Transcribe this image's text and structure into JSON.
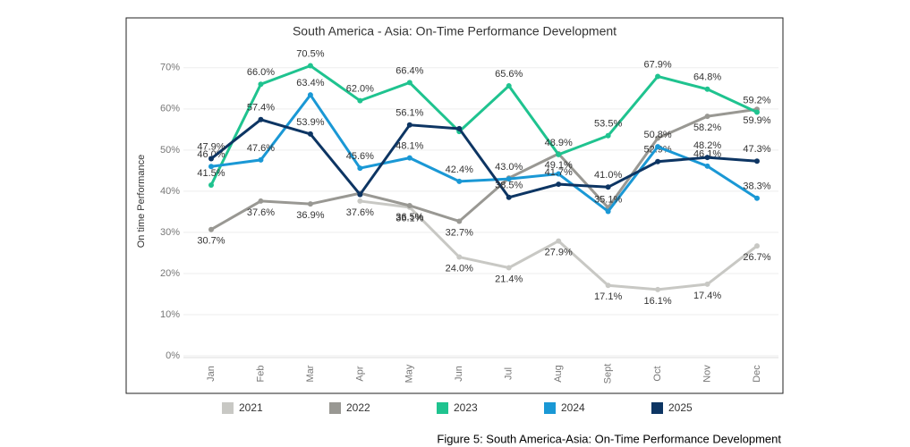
{
  "chart_data": {
    "type": "line",
    "title": "South America - Asia: On-Time Performance Development",
    "y_label": "On time Performance",
    "caption": "Figure 5: South America-Asia: On-Time Performance Development",
    "categories": [
      "Jan",
      "Feb",
      "Mar",
      "Apr",
      "May",
      "Jun",
      "Jul",
      "Aug",
      "Sept",
      "Oct",
      "Nov",
      "Dec"
    ],
    "ylim": [
      0,
      73
    ],
    "yticks": [
      {
        "value": 0,
        "label": "0%"
      },
      {
        "value": 10,
        "label": "10%"
      },
      {
        "value": 20,
        "label": "20%"
      },
      {
        "value": 30,
        "label": "30%"
      },
      {
        "value": 40,
        "label": "40%"
      },
      {
        "value": 50,
        "label": "50%"
      },
      {
        "value": 60,
        "label": "60%"
      },
      {
        "value": 70,
        "label": "70%"
      }
    ],
    "grid": true,
    "legend": "bottom",
    "series": [
      {
        "name": "2021",
        "color": "#c8c8c4",
        "values": [
          null,
          null,
          null,
          37.6,
          36.1,
          24.0,
          21.4,
          27.9,
          17.1,
          16.1,
          17.4,
          26.7
        ],
        "value_labels": [
          null,
          null,
          null,
          "37.6%",
          "36.1%",
          "24.0%",
          "21.4%",
          "27.9%",
          "17.1%",
          "16.1%",
          "17.4%",
          "26.7%"
        ]
      },
      {
        "name": "2022",
        "color": "#999893",
        "values": [
          30.7,
          37.6,
          36.9,
          39.5,
          36.5,
          32.7,
          43.2,
          49.1,
          36.0,
          52.9,
          58.2,
          59.9
        ],
        "value_labels": [
          "30.7%",
          "37.6%",
          "36.9%",
          null,
          "36.5%",
          "32.7%",
          null,
          "49.1%",
          null,
          "52.9%",
          "58.2%",
          "59.9%"
        ]
      },
      {
        "name": "2023",
        "color": "#1fc38f",
        "values": [
          41.5,
          66.0,
          70.5,
          62.0,
          66.4,
          54.5,
          65.6,
          48.9,
          53.5,
          67.9,
          64.8,
          59.2
        ],
        "value_labels": [
          "41.5%",
          "66.0%",
          "70.5%",
          "62.0%",
          "66.4%",
          null,
          "65.6%",
          "48.9%",
          "53.5%",
          "67.9%",
          "64.8%",
          "59.2%"
        ]
      },
      {
        "name": "2024",
        "color": "#1a98d5",
        "values": [
          46.0,
          47.6,
          63.4,
          45.6,
          48.1,
          42.4,
          43.0,
          44.2,
          35.1,
          50.8,
          46.1,
          38.3
        ],
        "value_labels": [
          "46.0%",
          "47.6%",
          "63.4%",
          "45.6%",
          "48.1%",
          "42.4%",
          "43.0%",
          null,
          "35.1%",
          "50.8%",
          "46.1%",
          "38.3%"
        ]
      },
      {
        "name": "2025",
        "color": "#0d3563",
        "values": [
          47.9,
          57.4,
          53.9,
          39.2,
          56.1,
          55.2,
          38.5,
          41.7,
          41.0,
          47.2,
          48.2,
          47.3
        ],
        "value_labels": [
          "47.9%",
          "57.4%",
          "53.9%",
          null,
          "56.1%",
          null,
          "38.5%",
          "41.7%",
          "41.0%",
          null,
          "48.2%",
          "47.3%"
        ]
      }
    ]
  }
}
